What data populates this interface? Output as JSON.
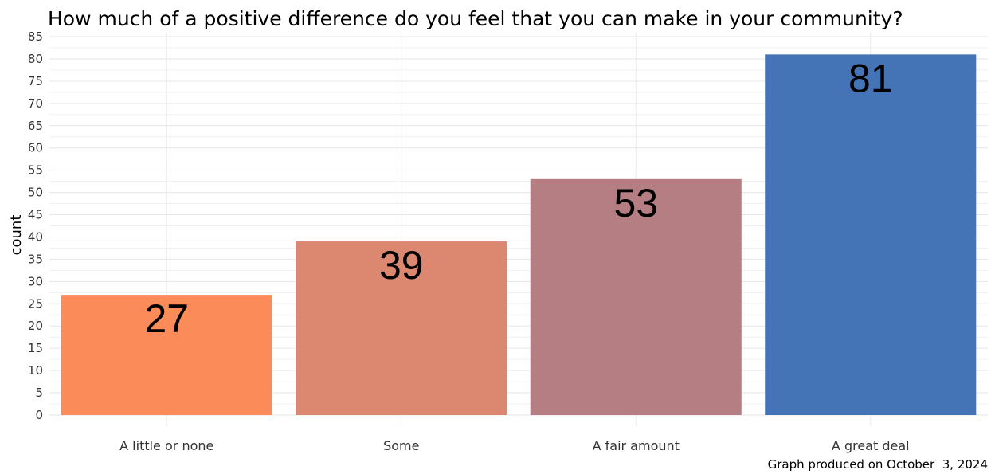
{
  "chart_data": {
    "type": "bar",
    "title": "How much of a positive difference do you feel that you can make in your community?",
    "categories": [
      "A little or none",
      "Some",
      "A fair amount",
      "A great deal"
    ],
    "values": [
      27,
      39,
      53,
      81
    ],
    "data_labels": [
      "27",
      "39",
      "53",
      "81"
    ],
    "colors": [
      "#FB8B58",
      "#DC8770",
      "#B47E83",
      "#4574B6"
    ],
    "xlabel": "",
    "ylabel": "count",
    "ylim": [
      0,
      85
    ],
    "yticks": [
      "0",
      "5",
      "10",
      "15",
      "20",
      "25",
      "30",
      "35",
      "40",
      "45",
      "50",
      "55",
      "60",
      "65",
      "70",
      "75",
      "80",
      "85"
    ],
    "grid": true,
    "caption": "Graph produced on October  3, 2024"
  }
}
